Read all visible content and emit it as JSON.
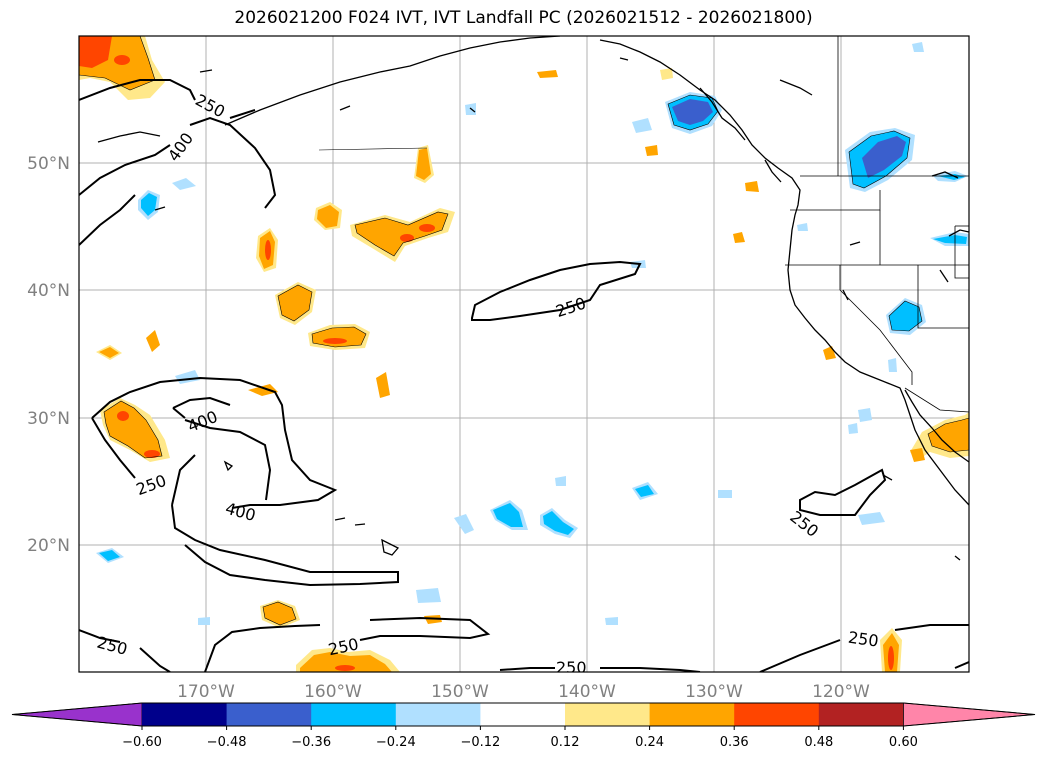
{
  "title": "2026021200 F024 IVT, IVT Landfall PC (2026021512 - 2026021800)",
  "lat_labels": [
    "50°N",
    "40°N",
    "30°N",
    "20°N"
  ],
  "lon_labels": [
    "170°W",
    "160°W",
    "150°W",
    "140°W",
    "130°W",
    "120°W"
  ],
  "contour_labels": [
    "250",
    "400",
    "250",
    "400",
    "250",
    "400",
    "250",
    "250",
    "250",
    "250",
    "250"
  ],
  "colorbar": {
    "ticks": [
      "−0.60",
      "−0.48",
      "−0.36",
      "−0.24",
      "−0.12",
      "0.12",
      "0.24",
      "0.36",
      "0.48",
      "0.60"
    ],
    "colors": [
      "#9932cc",
      "#00008b",
      "#3a5fcd",
      "#00bfff",
      "#b0e0ff",
      "#ffffff",
      "#ffe88a",
      "#ffa500",
      "#ff4500",
      "#b22222",
      "#ff85a9"
    ]
  },
  "palette": {
    "coast": "#000000",
    "grid": "#b0b0b0",
    "pos_light": "#ffe88a",
    "pos_mid": "#ffa500",
    "pos_high": "#ff4500",
    "neg_light": "#b0e0ff",
    "neg_mid": "#00bfff",
    "neg_high": "#3a5fcd"
  }
}
